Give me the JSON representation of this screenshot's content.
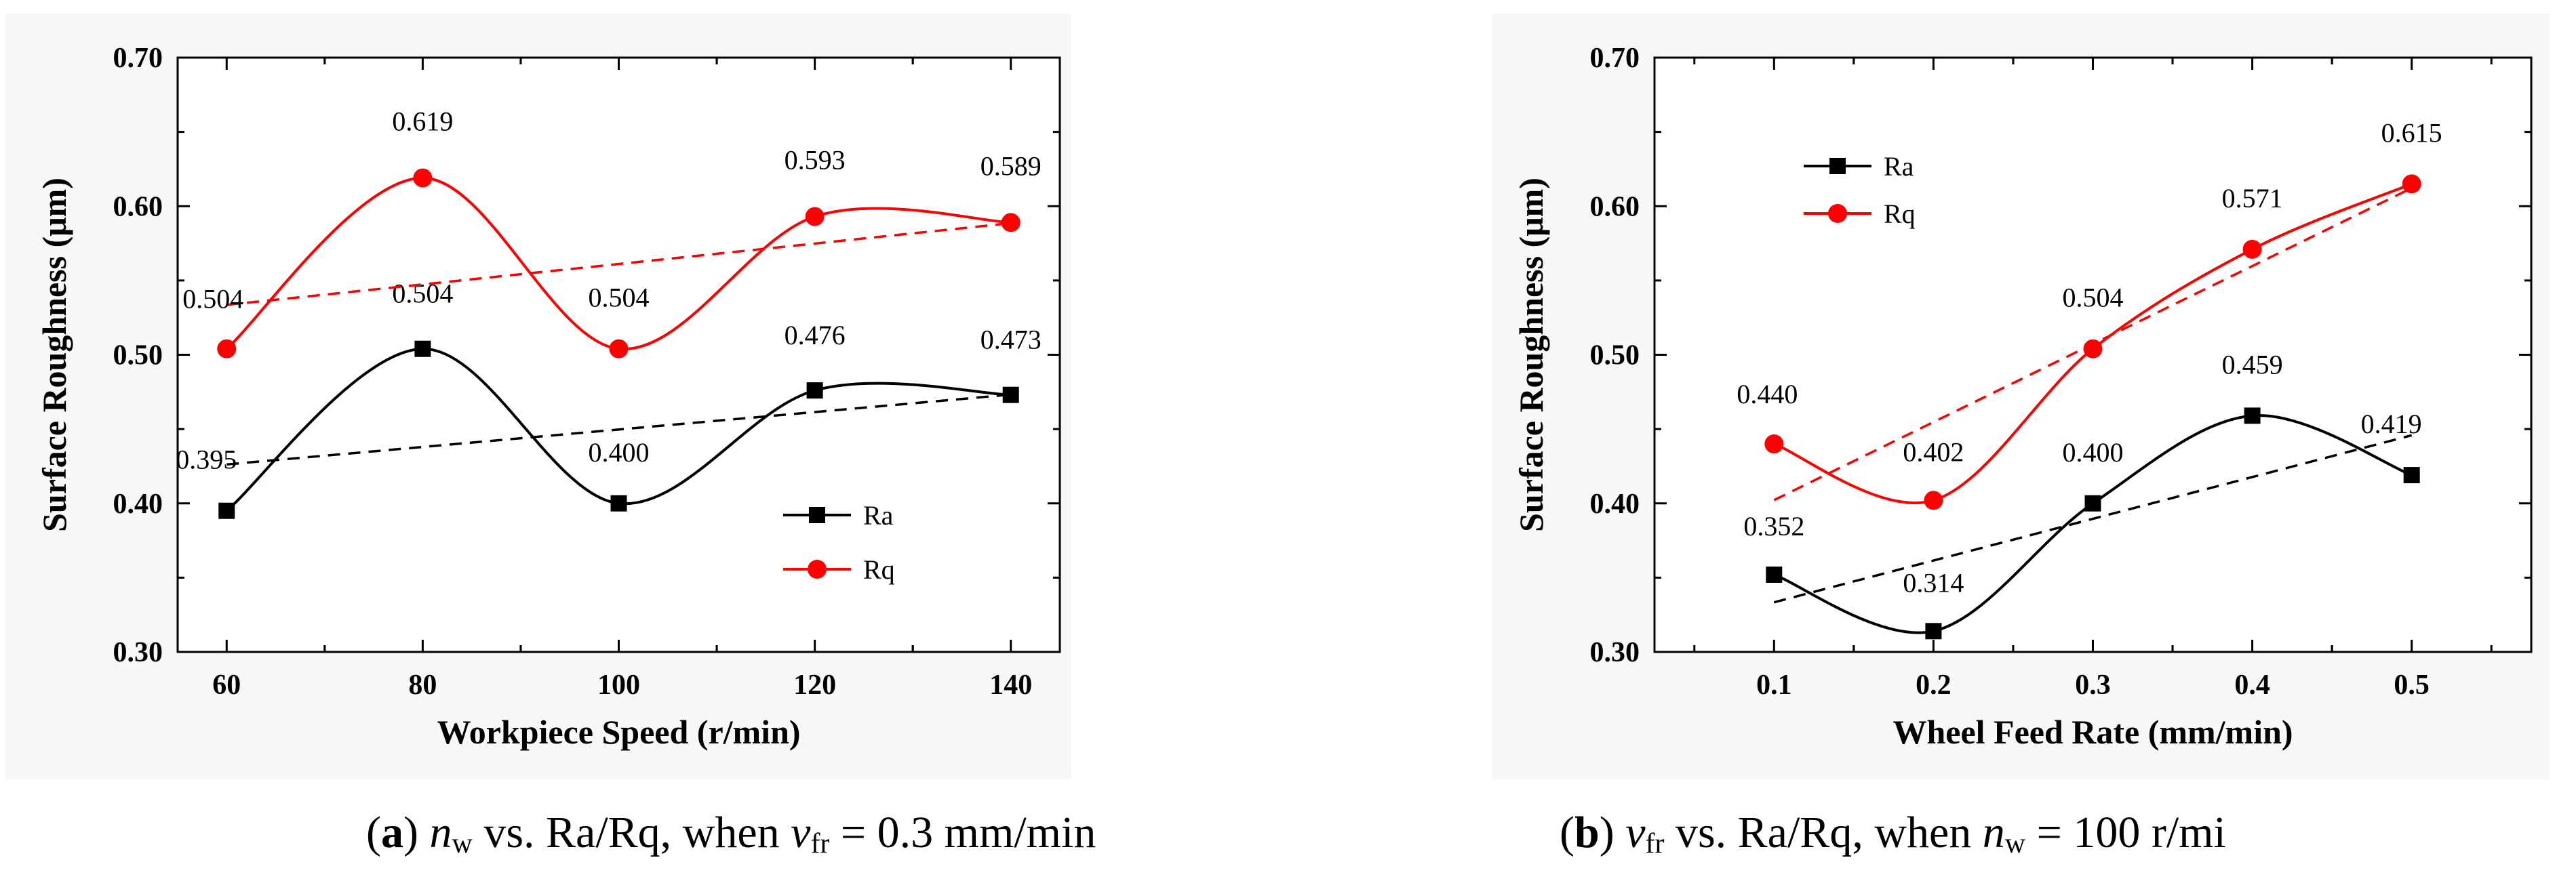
{
  "chart_data": [
    {
      "type": "line",
      "xlabel": "Workpiece Speed (r/min)",
      "ylabel": "Surface Roughness (μm)",
      "x": [
        60,
        80,
        100,
        120,
        140
      ],
      "x_tick_labels": [
        "60",
        "80",
        "100",
        "120",
        "140"
      ],
      "xlim": [
        55,
        145
      ],
      "ylim": [
        0.3,
        0.7
      ],
      "y_tick_labels": [
        "0.30",
        "0.40",
        "0.50",
        "0.60",
        "0.70"
      ],
      "legend_position": "lower-right",
      "series": [
        {
          "name": "Ra",
          "color": "#000000",
          "marker": "square",
          "values": [
            0.395,
            0.504,
            0.4,
            0.476,
            0.473
          ],
          "labels": [
            "0.395",
            "0.504",
            "0.400",
            "0.476",
            "0.473"
          ],
          "trendline": [
            0.4262,
            0.4732
          ]
        },
        {
          "name": "Rq",
          "color": "#ff0000",
          "marker": "circle",
          "values": [
            0.504,
            0.619,
            0.504,
            0.593,
            0.589
          ],
          "labels": [
            "0.504",
            "0.619",
            "0.504",
            "0.593",
            "0.589"
          ],
          "trendline": [
            0.5336,
            0.5886
          ]
        }
      ],
      "caption": {
        "letter": "a",
        "var1": "n",
        "sub1": "w",
        "mid": " vs. Ra/Rq, when ",
        "var2": "v",
        "sub2": "fr",
        "tail": " = 0.3 mm/min"
      }
    },
    {
      "type": "line",
      "xlabel": "Wheel Feed Rate (mm/min)",
      "ylabel": "Surface Roughness (μm)",
      "x": [
        0.1,
        0.2,
        0.3,
        0.4,
        0.5
      ],
      "x_tick_labels": [
        "0.1",
        "0.2",
        "0.3",
        "0.4",
        "0.5"
      ],
      "xlim": [
        0.025,
        0.575
      ],
      "ylim": [
        0.3,
        0.7
      ],
      "y_tick_labels": [
        "0.30",
        "0.40",
        "0.50",
        "0.60",
        "0.70"
      ],
      "legend_position": "top-left",
      "series": [
        {
          "name": "Ra",
          "color": "#000000",
          "marker": "square",
          "values": [
            0.352,
            0.314,
            0.4,
            0.459,
            0.419
          ],
          "labels": [
            "0.352",
            "0.314",
            "0.400",
            "0.459",
            "0.419"
          ],
          "trendline": [
            0.3334,
            0.4458
          ]
        },
        {
          "name": "Rq",
          "color": "#ff0000",
          "marker": "circle",
          "values": [
            0.44,
            0.402,
            0.504,
            0.571,
            0.615
          ],
          "labels": [
            "0.440",
            "0.402",
            "0.504",
            "0.571",
            "0.615"
          ],
          "trendline": [
            0.4022,
            0.6122
          ]
        }
      ],
      "caption": {
        "letter": "b",
        "var1": "v",
        "sub1": "fr",
        "mid": " vs. Ra/Rq, when ",
        "var2": "n",
        "sub2": "w",
        "tail": " = 100 r/mi"
      }
    }
  ]
}
